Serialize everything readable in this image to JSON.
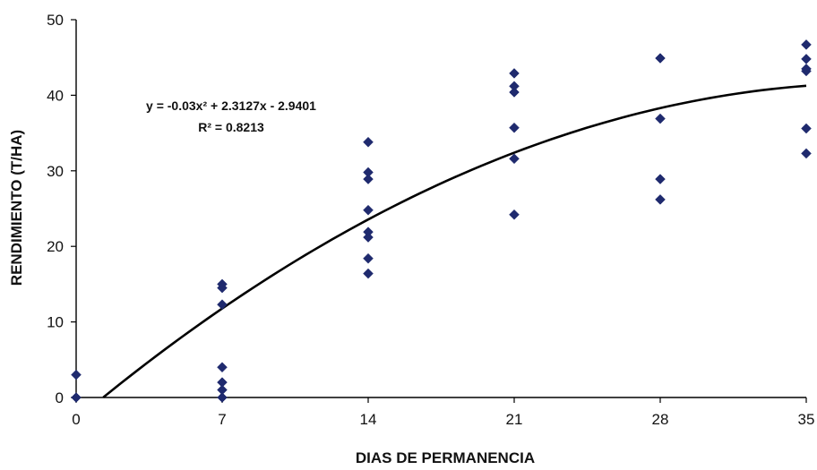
{
  "chart_data": {
    "type": "scatter",
    "title": "",
    "xlabel": "DIAS DE PERMANENCIA",
    "ylabel": "RENDIMIENTO (T/HA)",
    "xlim": [
      0,
      35
    ],
    "ylim": [
      0,
      50
    ],
    "x_ticks": [
      0,
      7,
      14,
      21,
      28,
      35
    ],
    "y_ticks": [
      0,
      10,
      20,
      30,
      40,
      50
    ],
    "grid": false,
    "legend": "none",
    "series": [
      {
        "marker": "diamond",
        "color": "#1f2a6e",
        "points": [
          [
            0,
            3.0
          ],
          [
            0,
            0.0
          ],
          [
            7,
            15.0
          ],
          [
            7,
            14.5
          ],
          [
            7,
            12.3
          ],
          [
            7,
            4.0
          ],
          [
            7,
            2.0
          ],
          [
            7,
            1.0
          ],
          [
            7,
            0.0
          ],
          [
            14,
            33.8
          ],
          [
            14,
            29.8
          ],
          [
            14,
            28.9
          ],
          [
            14,
            24.8
          ],
          [
            14,
            21.9
          ],
          [
            14,
            21.2
          ],
          [
            14,
            18.4
          ],
          [
            14,
            16.4
          ],
          [
            21,
            42.9
          ],
          [
            21,
            41.2
          ],
          [
            21,
            40.4
          ],
          [
            21,
            35.7
          ],
          [
            21,
            31.6
          ],
          [
            21,
            24.2
          ],
          [
            28,
            44.9
          ],
          [
            28,
            36.9
          ],
          [
            28,
            28.9
          ],
          [
            28,
            26.2
          ],
          [
            35,
            46.7
          ],
          [
            35,
            44.8
          ],
          [
            35,
            43.5
          ],
          [
            35,
            43.2
          ],
          [
            35,
            35.6
          ],
          [
            35,
            32.3
          ]
        ]
      }
    ],
    "trendline": {
      "type": "polynomial",
      "coefficients": {
        "a": -0.03,
        "b": 2.3127,
        "c": -2.9401
      },
      "x_range": [
        1.3,
        35
      ],
      "color": "#000000"
    },
    "annotations": {
      "equation": "y = -0.03x² + 2.3127x - 2.9401",
      "r_squared": "R² = 0.8213"
    }
  }
}
